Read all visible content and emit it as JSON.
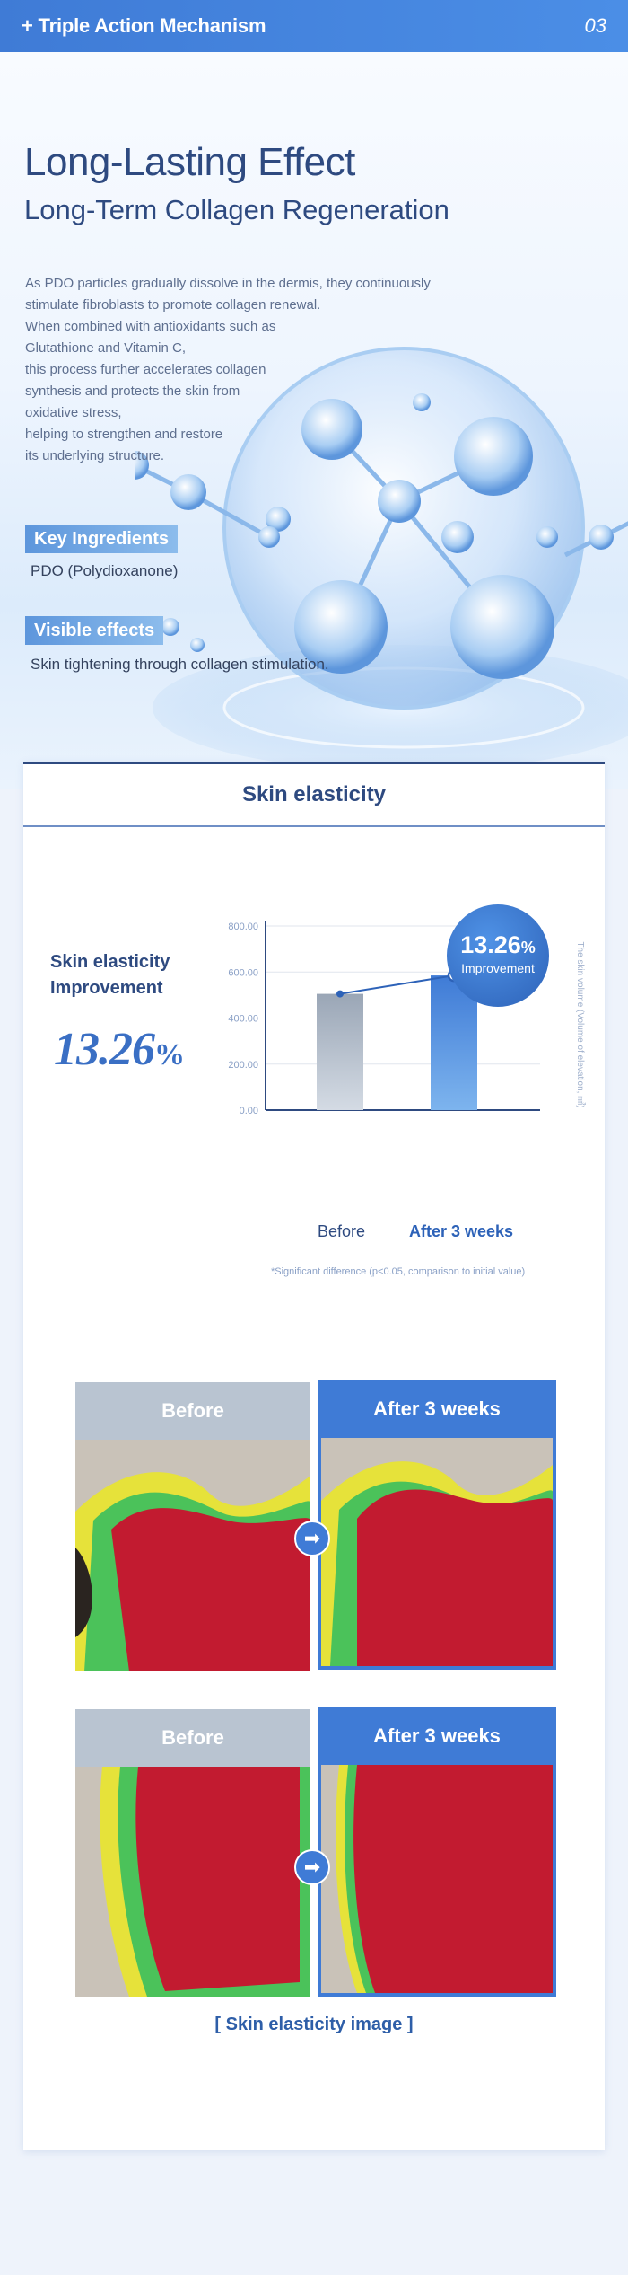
{
  "header": {
    "title": "+ Triple Action Mechanism",
    "page_number": "03"
  },
  "hero": {
    "title": "Long-Lasting Effect",
    "subtitle": "Long-Term Collagen Regeneration",
    "description_lines": [
      "As PDO particles gradually dissolve in the dermis, they continuously",
      "stimulate fibroblasts to promote collagen renewal.",
      "When combined with antioxidants such as",
      "Glutathione and Vitamin C,",
      "this process further accelerates collagen",
      "synthesis and protects the skin from",
      "oxidative stress,",
      "helping to strengthen and restore",
      "its underlying structure."
    ],
    "key_ingredients_label": "Key Ingredients",
    "key_ingredients_value": "PDO (Polydioxanone)",
    "visible_effects_label": "Visible effects",
    "visible_effects_value": "Skin tightening through collagen stimulation."
  },
  "card": {
    "title": "Skin elasticity",
    "stat_label_line1": "Skin elasticity",
    "stat_label_line2": "Improvement",
    "stat_value": "13.26",
    "stat_unit": "%",
    "badge_value": "13.26",
    "badge_unit": "%",
    "badge_label": "Improvement",
    "significance_marker": "*",
    "note": "*Significant difference (p<0.05, comparison to initial value)",
    "image_caption": "[ Skin elasticity image ]",
    "panel_before_label": "Before",
    "panel_after_label": "After 3 weeks"
  },
  "chart_data": {
    "type": "bar",
    "categories": [
      "Before",
      "After 3 weeks"
    ],
    "values": [
      505,
      585
    ],
    "ylabel": "The skin volume (Volume of elevation, ㎣)",
    "ylim": [
      0,
      800
    ],
    "yticks": [
      "0.00",
      "200.00",
      "400.00",
      "600.00",
      "800.00"
    ],
    "grid": true,
    "colors": {
      "before": "#a9b4c2",
      "after": "#4a89de",
      "line": "#2d62b8"
    }
  }
}
